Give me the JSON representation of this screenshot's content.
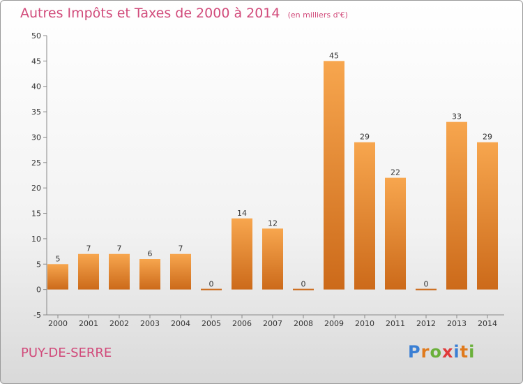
{
  "chart_data": {
    "type": "bar",
    "title": "Autres Impôts et Taxes de 2000 à 2014",
    "subtitle": "(en milliers d'€)",
    "categories": [
      "2000",
      "2001",
      "2002",
      "2003",
      "2004",
      "2005",
      "2006",
      "2007",
      "2008",
      "2009",
      "2010",
      "2011",
      "2012",
      "2013",
      "2014"
    ],
    "values": [
      5,
      7,
      7,
      6,
      7,
      0,
      14,
      12,
      0,
      45,
      29,
      22,
      0,
      33,
      29
    ],
    "ylim": [
      -5,
      50
    ],
    "yticks": [
      -5,
      0,
      5,
      10,
      15,
      20,
      25,
      30,
      35,
      40,
      45,
      50
    ],
    "grid": false,
    "bar_color_light": "#f7a64e",
    "bar_color_dark": "#cc6a1a"
  },
  "footer": {
    "place": "PUY-DE-SERRE",
    "logo_letters": [
      "P",
      "r",
      "o",
      "x",
      "i",
      "t",
      "i"
    ],
    "logo_colors": [
      "#3a7fd4",
      "#e07a1c",
      "#6ab03a",
      "#e03a3a",
      "#3a7fd4",
      "#e07a1c",
      "#6ab03a"
    ]
  }
}
